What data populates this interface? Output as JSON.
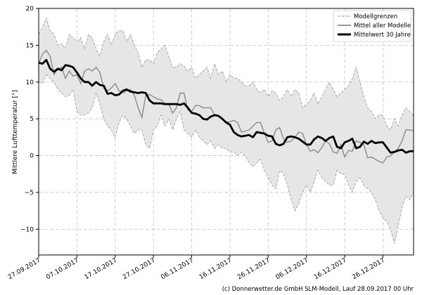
{
  "chart_data": {
    "type": "area",
    "ylabel": "Mittlere Lufttemperatur [°]",
    "xlabel": "",
    "ylim": [
      -13.5,
      20
    ],
    "xlim": [
      0,
      98
    ],
    "yticks": [
      -10,
      -5,
      0,
      5,
      10,
      15,
      20
    ],
    "ytick_labels": [
      "−10",
      "−5",
      "0",
      "5",
      "10",
      "15",
      "20"
    ],
    "xtick_positions": [
      0,
      10,
      20,
      30,
      40,
      50,
      60,
      70,
      80,
      90
    ],
    "xtick_labels": [
      "27.09.2017",
      "07.10.2017",
      "17.10.2017",
      "27.10.2017",
      "06.11.2017",
      "16.11.2017",
      "26.11.2017",
      "06.12.2017",
      "16.12.2017",
      "26.12.2017"
    ],
    "grid": true,
    "legend": {
      "placement": "top-right",
      "entries": [
        "Modellgrenzen",
        "Mittel aller Modelle",
        "Mittelwert 30 Jahre"
      ]
    },
    "colors": {
      "envelope_fill": "#e6e6e6",
      "envelope_line": "#9a9a9a",
      "warm_fill": "#e8a598",
      "cold_fill": "#a9d1e6",
      "model_mean_line": "#8a8a8a",
      "climate_line": "#000000",
      "grid": "#c8c8c8"
    },
    "series": [
      {
        "name": "Modellgrenzen (oben)",
        "values": [
          16.5,
          17.5,
          18.7,
          17,
          16.5,
          15,
          15.2,
          14.5,
          16.5,
          16,
          15.5,
          16,
          14.5,
          16.5,
          16,
          14.5,
          13.5,
          15.5,
          16.5,
          15,
          16.5,
          17,
          17,
          15.5,
          16.5,
          15,
          14,
          12,
          13,
          13,
          12.5,
          14,
          14.5,
          15,
          13.5,
          12,
          12,
          12.5,
          12.2,
          11.5,
          12,
          10.5,
          11,
          11.5,
          12,
          10.5,
          12.5,
          11,
          11.5,
          10,
          11,
          10.5,
          10.5,
          10,
          9.5,
          9.5,
          10,
          9,
          8.5,
          9,
          8,
          8.8,
          8.5,
          7.5,
          8,
          9,
          8,
          9,
          8.5,
          6.5,
          7,
          7.5,
          8.5,
          7,
          8,
          9,
          10,
          9,
          8,
          8.5,
          9,
          9.5,
          10.5,
          12,
          10,
          8,
          6.5,
          6,
          5,
          5.5,
          5.5,
          4,
          3.5,
          5,
          4,
          5.5,
          6.5,
          6,
          5.5
        ]
      },
      {
        "name": "Modellgrenzen (unten)",
        "values": [
          10,
          9.8,
          11,
          10.5,
          10,
          9,
          8.5,
          8,
          8.2,
          9,
          6,
          5.5,
          5.5,
          5.8,
          6.5,
          8.5,
          7,
          5,
          4,
          3.5,
          2.5,
          4.5,
          5.5,
          5,
          4,
          3,
          3.5,
          3.5,
          1.5,
          1,
          3.5,
          4,
          5.5,
          4,
          5,
          3.5,
          5,
          6,
          3.5,
          3,
          2.5,
          3.5,
          2.5,
          2,
          1.5,
          2,
          1,
          1.5,
          1,
          1,
          0.5,
          0.5,
          0,
          0.5,
          0,
          -1,
          -1.5,
          -1,
          -0.5,
          -2,
          -3,
          -4,
          -4.5,
          -2,
          -2.5,
          -4,
          -6,
          -7.5,
          -6.5,
          -5,
          -4,
          -5,
          -3.5,
          -2,
          -3,
          -3.5,
          -4,
          -4,
          -2,
          -2.5,
          -2.5,
          -4,
          -5,
          -3.5,
          -3,
          -4,
          -4.5,
          -5,
          -6,
          -7.5,
          -8.5,
          -9,
          -10,
          -12,
          -9.5,
          -7,
          -5.5,
          -6,
          -5
        ]
      },
      {
        "name": "Mittel aller Modelle",
        "values": [
          12.5,
          13.8,
          14.3,
          13.5,
          11,
          11.8,
          12,
          10.5,
          11.5,
          10.8,
          11,
          9.8,
          11.5,
          11.8,
          11.5,
          12,
          11.3,
          9.2,
          8.8,
          9.2,
          9.8,
          8.8,
          8.5,
          8.8,
          9,
          8.2,
          6.5,
          5.2,
          8.2,
          8.3,
          8,
          7.7,
          7.6,
          7,
          7,
          5.8,
          6.5,
          8.5,
          8.5,
          6.2,
          6,
          6.8,
          6.8,
          6.5,
          6.5,
          6.5,
          5.5,
          5.5,
          4.9,
          4.6,
          4.6,
          4.8,
          4.5,
          3.2,
          3.3,
          3.5,
          4,
          4.5,
          4.5,
          3,
          1.8,
          2,
          3.5,
          3.8,
          2.3,
          1.8,
          2,
          2.5,
          3.2,
          3,
          1.5,
          0.6,
          0.8,
          0.4,
          1.1,
          2,
          1.6,
          0.5,
          0.3,
          1.5,
          -0.2,
          0.7,
          0.6,
          2,
          1.8,
          1.5,
          -0.3,
          -0.2,
          -0.5,
          -0.8,
          -1,
          -0.2,
          0,
          0.5,
          1,
          2,
          3.5,
          3.5,
          3.4
        ]
      },
      {
        "name": "Mittelwert 30 Jahre",
        "values": [
          12.6,
          12.5,
          13,
          11.8,
          11.4,
          11.8,
          11.6,
          12.3,
          12.2,
          12,
          11.3,
          10.5,
          10,
          10,
          9.5,
          10,
          9.6,
          9.5,
          8.4,
          8.5,
          8.2,
          8.3,
          8.8,
          9,
          8.7,
          8.6,
          8.5,
          8.6,
          8.5,
          7.5,
          7.1,
          7.1,
          7.1,
          7,
          7,
          7,
          7,
          6.9,
          7.1,
          6.5,
          5.8,
          5.7,
          5.5,
          5,
          4.9,
          5.3,
          5.5,
          5.4,
          5,
          4.5,
          4.2,
          3.2,
          2.8,
          2.6,
          2.7,
          2.8,
          2.5,
          3.2,
          3.1,
          3,
          2.7,
          2.6,
          1.6,
          1.4,
          1.6,
          2.5,
          2.6,
          2.5,
          2.3,
          1.9,
          1.5,
          1.5,
          2.2,
          2.6,
          2.4,
          2,
          2.4,
          2.6,
          1.2,
          1,
          1.8,
          2,
          2.3,
          1,
          1.2,
          1.9,
          1.6,
          2,
          1.7,
          1.8,
          1.8,
          1.1,
          0.4,
          0.5,
          0.7,
          0.8,
          0.4,
          0.6,
          0.6
        ]
      }
    ]
  },
  "footer": {
    "credit": "(c) Donnerwetter.de GmbH SLM-Modell, Lauf 28.09.2017 00 Uhr"
  }
}
